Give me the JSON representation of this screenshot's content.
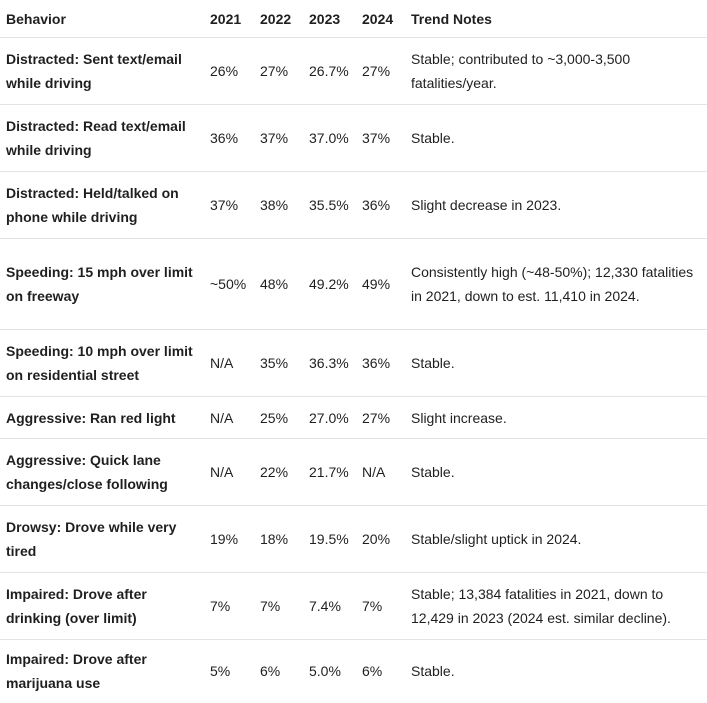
{
  "table": {
    "header": [
      "Behavior",
      "2021",
      "2022",
      "2023",
      "2024",
      "Trend Notes"
    ],
    "rows": [
      [
        "Distracted: Sent text/email while driving",
        "26%",
        "27%",
        "26.7%",
        "27%",
        "Stable; contributed to ~3,000-3,500 fatalities/year."
      ],
      [
        "Distracted: Read text/email while driving",
        "36%",
        "37%",
        "37.0%",
        "37%",
        "Stable."
      ],
      [
        "Distracted: Held/talked on phone while driving",
        "37%",
        "38%",
        "35.5%",
        "36%",
        "Slight decrease in 2023."
      ],
      [
        "Speeding: 15 mph over limit on freeway",
        "~50%",
        "48%",
        "49.2%",
        "49%",
        "Consistently high (~48-50%); 12,330 fatalities in 2021, down to est. 11,410 in 2024."
      ],
      [
        "Speeding: 10 mph over limit on residential street",
        "N/A",
        "35%",
        "36.3%",
        "36%",
        "Stable."
      ],
      [
        "Aggressive: Ran red light",
        "N/A",
        "25%",
        "27.0%",
        "27%",
        "Slight increase."
      ],
      [
        "Aggressive: Quick lane changes/close following",
        "N/A",
        "22%",
        "21.7%",
        "N/A",
        "Stable."
      ],
      [
        "Drowsy: Drove while very tired",
        "19%",
        "18%",
        "19.5%",
        "20%",
        "Stable/slight uptick in 2024."
      ],
      [
        "Impaired: Drove after drinking (over limit)",
        "7%",
        "7%",
        "7.4%",
        "7%",
        "Stable; 13,384 fatalities in 2021, down to 12,429 in 2023 (2024 est. similar decline)."
      ],
      [
        "Impaired: Drove after marijuana use",
        "5%",
        "6%",
        "5.0%",
        "6%",
        "Stable."
      ]
    ]
  }
}
